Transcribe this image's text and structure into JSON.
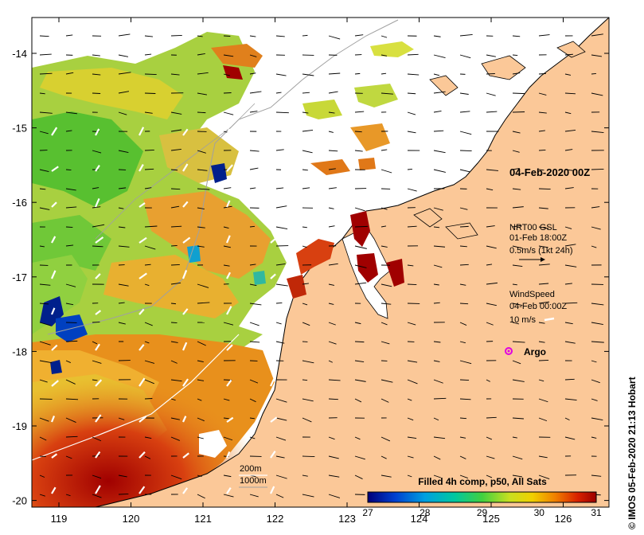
{
  "map": {
    "date_title": "04-Feb-2020 00Z",
    "current_legend": {
      "source": "NRT00 GSL",
      "time": "01-Feb 18:00Z",
      "scale": "0.5m/s (1kt 24h)"
    },
    "wind_legend": {
      "title": "WindSpeed",
      "time": "04-Feb 00:00Z",
      "scale": "10 m/s"
    },
    "argo_label": "Argo",
    "isobath_labels": {
      "shallow": "200m",
      "deep": "1000m"
    },
    "colorbar": {
      "title": "Filled 4h comp, p50, All Sats",
      "ticks": [
        "27",
        "28",
        "29",
        "30",
        "31"
      ],
      "range": [
        27,
        31
      ]
    },
    "credit": "© IMOS 05-Feb-2020 21:13 Hobart",
    "lon_ticks": [
      "119",
      "120",
      "121",
      "122",
      "123",
      "124",
      "125",
      "126"
    ],
    "lat_ticks": [
      "-14",
      "-15",
      "-16",
      "-17",
      "-18",
      "-19",
      "-20"
    ],
    "colors": {
      "land": "#fbc898",
      "cloud": "#ffffff",
      "sst_warmest": "#a00000",
      "sst_warm": "#e06a10",
      "sst_mid": "#e8c020",
      "sst_cool": "#9ad030",
      "sst_cold": "#00208c",
      "argo": "#e000e0"
    }
  }
}
